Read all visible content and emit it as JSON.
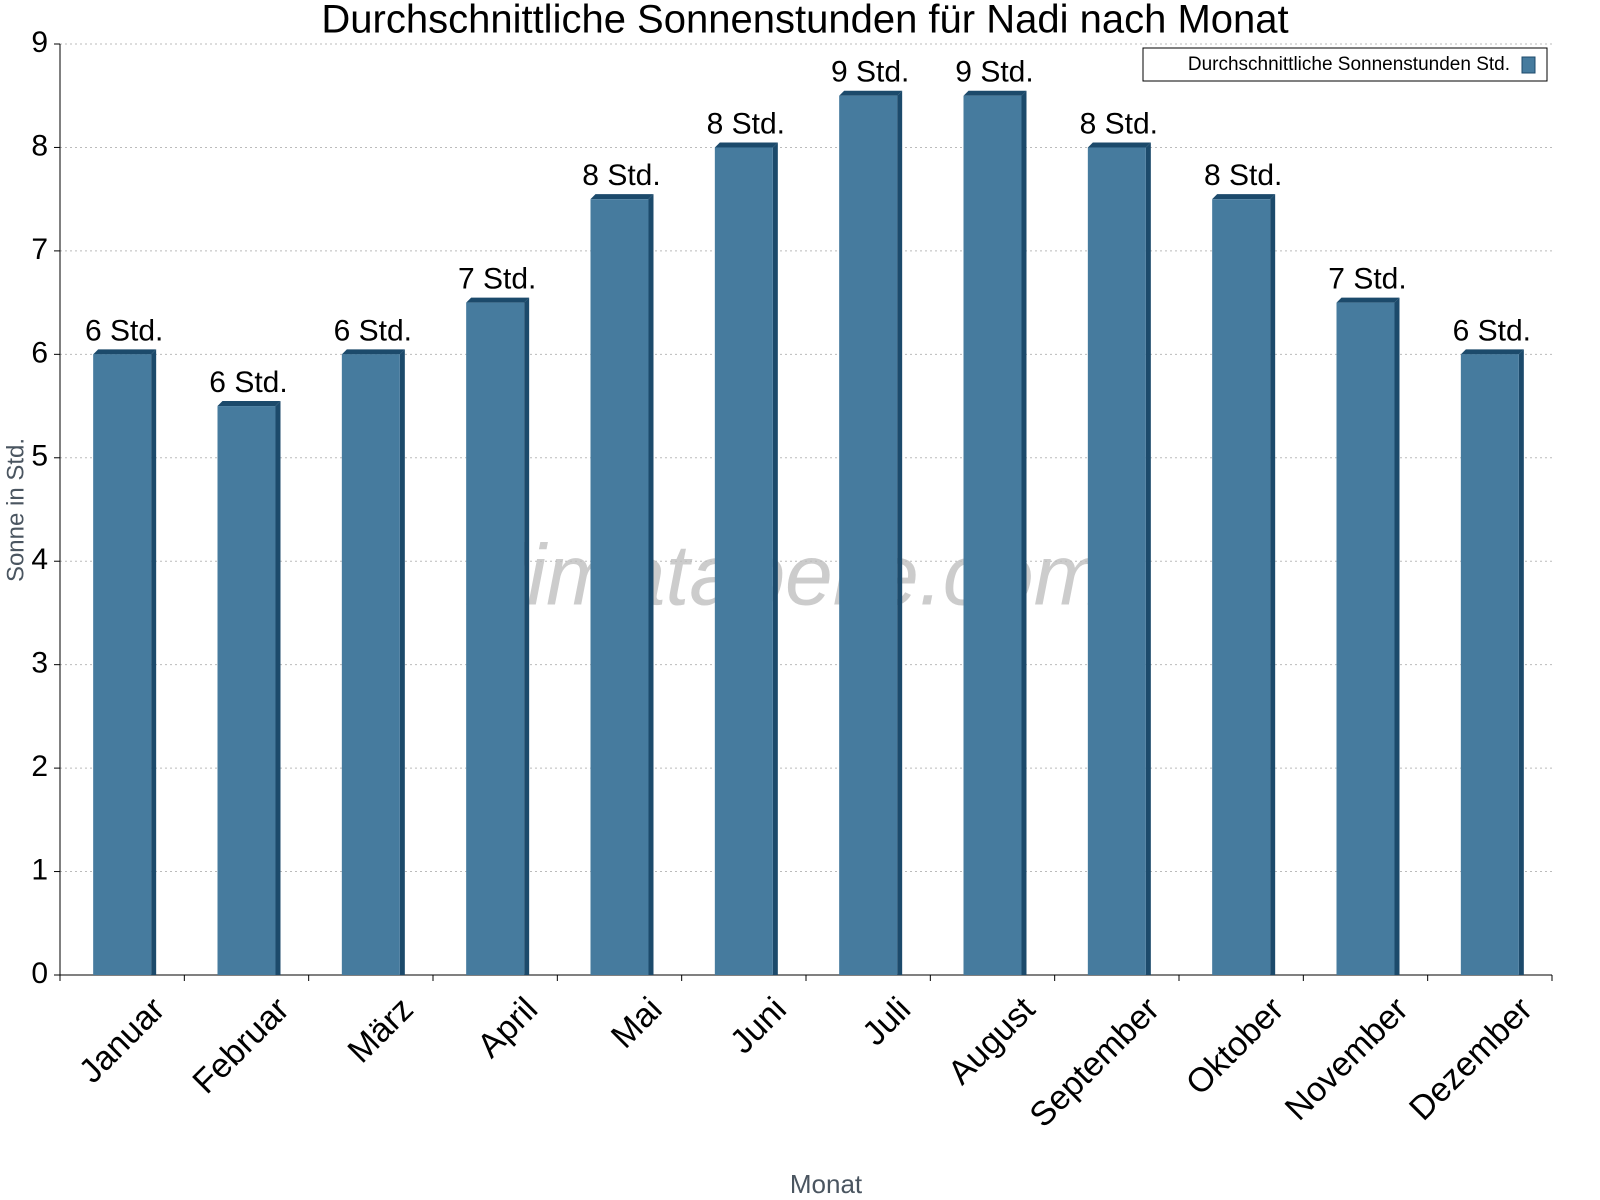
{
  "chart_data": {
    "type": "bar",
    "title": "Durchschnittliche Sonnenstunden für Nadi nach Monat",
    "x_label": "Monat",
    "y_label": "Sonne in Std.",
    "watermark": "klimatabelle.com",
    "categories": [
      "Januar",
      "Februar",
      "März",
      "April",
      "Mai",
      "Juni",
      "Juli",
      "August",
      "September",
      "Oktober",
      "November",
      "Dezember"
    ],
    "series": [
      {
        "name": "Durchschnittliche Sonnenstunden Std.",
        "color": "#467b9e",
        "side_color": "#1c4a6b",
        "values": [
          6,
          5.5,
          6,
          6.5,
          7.5,
          8,
          8.5,
          8.5,
          8,
          7.5,
          6.5,
          6
        ],
        "value_labels": [
          "6 Std.",
          "6 Std.",
          "6 Std.",
          "7 Std.",
          "8 Std.",
          "8 Std.",
          "9 Std.",
          "9 Std.",
          "8 Std.",
          "8 Std.",
          "7 Std.",
          "6 Std."
        ]
      }
    ],
    "ylim": [
      0,
      9
    ],
    "yticks": [
      0,
      1,
      2,
      3,
      4,
      5,
      6,
      7,
      8,
      9
    ],
    "grid": true,
    "legend": "top-right"
  }
}
